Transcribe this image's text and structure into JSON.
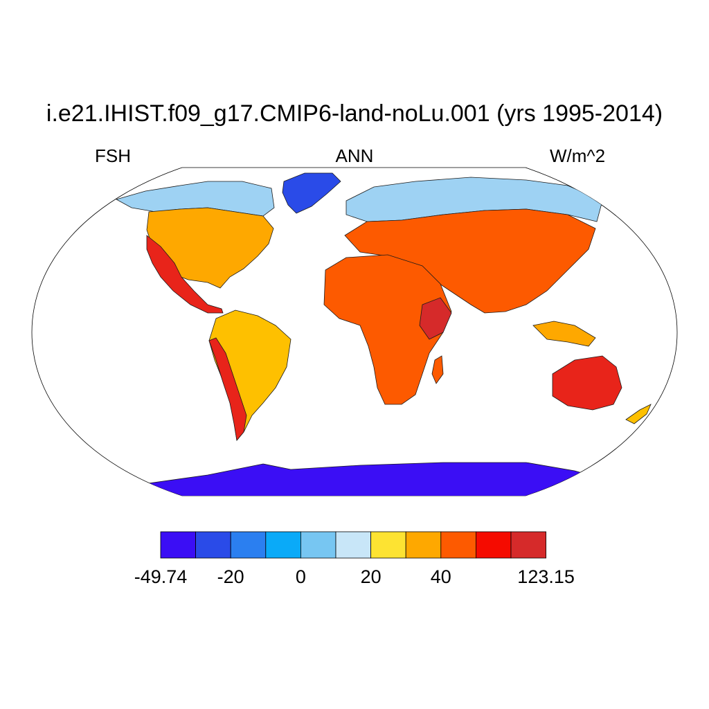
{
  "title": "i.e21.IHIST.f09_g17.CMIP6-land-noLu.001 (yrs 1995-2014)",
  "left_label": "FSH",
  "center_label": "ANN",
  "right_label": "W/m^2",
  "colorbar": {
    "colors": [
      "#3b0ef5",
      "#2a4be8",
      "#2b7ff0",
      "#0aaaf8",
      "#77c6f2",
      "#c8e6f8",
      "#fde332",
      "#fea800",
      "#fd5a00",
      "#f50b00",
      "#d62a2a"
    ],
    "tick_labels": [
      "-49.74",
      "-20",
      "0",
      "20",
      "40",
      "123.15"
    ]
  },
  "chart_data": {
    "type": "heatmap",
    "variable": "FSH",
    "period": "ANN",
    "units": "W/m^2",
    "range": [
      -49.74,
      123.15
    ],
    "regions": [
      {
        "name": "Greenland",
        "color_bin": 1
      },
      {
        "name": "Antarctica",
        "color_bin": 0
      },
      {
        "name": "North Canada / Arctic",
        "color_bin": 4
      },
      {
        "name": "North America",
        "color_bin": 7
      },
      {
        "name": "Southwest US / Mexico",
        "color_bin": 9
      },
      {
        "name": "Amazon",
        "color_bin": 6
      },
      {
        "name": "Patagonia",
        "color_bin": 8
      },
      {
        "name": "Northern Europe / Siberia",
        "color_bin": 4
      },
      {
        "name": "Central Asia",
        "color_bin": 8
      },
      {
        "name": "Sahara",
        "color_bin": 8
      },
      {
        "name": "Horn of Africa",
        "color_bin": 10
      },
      {
        "name": "Southern Africa",
        "color_bin": 9
      },
      {
        "name": "Australia",
        "color_bin": 9
      },
      {
        "name": "Southeast Asia",
        "color_bin": 7
      }
    ]
  }
}
